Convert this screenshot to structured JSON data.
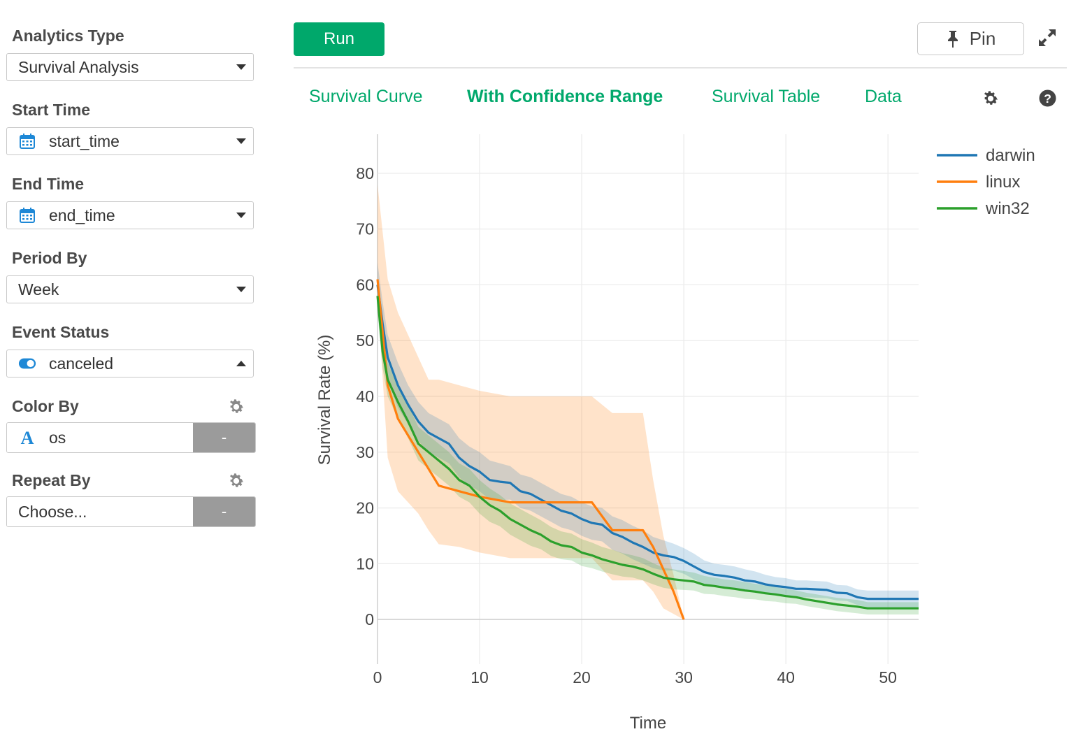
{
  "sidebar": {
    "analytics_type": {
      "label": "Analytics Type",
      "value": "Survival Analysis"
    },
    "start_time": {
      "label": "Start Time",
      "value": "start_time",
      "icon": "calendar-icon"
    },
    "end_time": {
      "label": "End Time",
      "value": "end_time",
      "icon": "calendar-icon"
    },
    "period_by": {
      "label": "Period By",
      "value": "Week"
    },
    "event_status": {
      "label": "Event Status",
      "value": "canceled",
      "icon": "toggle-icon"
    },
    "color_by": {
      "label": "Color By",
      "value": "os",
      "icon": "text-type-icon",
      "button": "-"
    },
    "repeat_by": {
      "label": "Repeat By",
      "value": "Choose...",
      "button": "-"
    }
  },
  "toolbar": {
    "run_label": "Run",
    "pin_label": "Pin"
  },
  "tabs": [
    {
      "label": "Survival Curve",
      "active": false
    },
    {
      "label": "With Confidence Range",
      "active": true
    },
    {
      "label": "Survival Table",
      "active": false
    },
    {
      "label": "Data",
      "active": false
    }
  ],
  "colors": {
    "accent": "#00a86b",
    "darwin": "#1f77b4",
    "linux": "#ff7f0e",
    "win32": "#2ca02c"
  },
  "chart_data": {
    "type": "line",
    "xlabel": "Time",
    "ylabel": "Survival Rate (%)",
    "xlim": [
      0,
      53
    ],
    "ylim": [
      -8,
      87
    ],
    "x_ticks": [
      0,
      10,
      20,
      30,
      40,
      50
    ],
    "y_ticks": [
      0,
      10,
      20,
      30,
      40,
      50,
      60,
      70,
      80
    ],
    "grid": true,
    "legend_position": "top-right",
    "series": [
      {
        "name": "darwin",
        "x": [
          0,
          0.5,
          1,
          2,
          3,
          4,
          5,
          6,
          7,
          8,
          9,
          10,
          11,
          12,
          13,
          14,
          15,
          16,
          17,
          18,
          19,
          20,
          21,
          22,
          23,
          24,
          25,
          26,
          27,
          28,
          29,
          30,
          31,
          32,
          33,
          34,
          35,
          36,
          37,
          38,
          39,
          40,
          41,
          42,
          43,
          44,
          45,
          46,
          47,
          48,
          53
        ],
        "y": [
          60,
          53,
          47,
          42,
          38.5,
          35.5,
          33.5,
          32.5,
          31.5,
          29,
          27.5,
          26.5,
          25,
          24.7,
          24.5,
          23,
          22.5,
          21.5,
          20.5,
          19.5,
          19,
          18,
          17.3,
          17,
          15.5,
          14.8,
          13.8,
          13,
          12,
          11.5,
          11.2,
          10.5,
          9.5,
          8.5,
          8,
          7.8,
          7.5,
          7,
          6.8,
          6.3,
          6,
          5.8,
          5.5,
          5.5,
          5.4,
          5.3,
          4.8,
          4.7,
          4,
          3.7,
          3.7
        ],
        "ci_upper": [
          64,
          57,
          51,
          46,
          42,
          39,
          37,
          36,
          35,
          32.5,
          31,
          30,
          28.5,
          28,
          27.5,
          26,
          25.5,
          24.5,
          23.5,
          22.5,
          22,
          21,
          20.3,
          20,
          18.5,
          17.8,
          16.8,
          16,
          14.8,
          14.2,
          13.6,
          12.8,
          11.8,
          10.6,
          10,
          9.8,
          9.5,
          9,
          8.6,
          8,
          7.6,
          7.4,
          7,
          7,
          6.9,
          6.8,
          6.2,
          6.1,
          5.4,
          5.2,
          5.2
        ],
        "ci_lower": [
          56,
          49,
          43,
          38,
          35,
          32,
          30,
          29,
          28,
          25.5,
          24,
          23,
          21.5,
          21.4,
          21.5,
          20,
          19.5,
          18.5,
          17.5,
          16.5,
          16,
          15,
          14.3,
          14,
          12.5,
          11.8,
          10.8,
          10,
          9.2,
          8.8,
          8.8,
          8.2,
          7.2,
          6.4,
          6,
          5.8,
          5.5,
          5,
          5,
          4.6,
          4.4,
          4.2,
          4,
          4,
          3.9,
          3.8,
          3.4,
          3.3,
          2.6,
          2.2,
          2.2
        ]
      },
      {
        "name": "linux",
        "x": [
          0,
          1,
          2,
          3,
          4,
          5,
          6,
          8,
          10,
          13,
          15,
          17,
          21,
          23,
          25,
          26,
          27,
          28,
          29,
          30
        ],
        "y": [
          61,
          42,
          36,
          33,
          30,
          27,
          24,
          23,
          22,
          21,
          21,
          21,
          21,
          16,
          16,
          16,
          13,
          9,
          5,
          0
        ],
        "ci_upper": [
          78,
          61,
          55,
          51,
          47,
          43,
          43,
          42,
          41,
          40,
          40,
          40,
          40,
          37,
          37,
          37,
          25,
          15,
          8,
          0
        ],
        "ci_lower": [
          58,
          29,
          23,
          21,
          19,
          16,
          13.5,
          13,
          12,
          11,
          11,
          11,
          11,
          7,
          7,
          7,
          5,
          2,
          1,
          0
        ]
      },
      {
        "name": "win32",
        "x": [
          0,
          0.5,
          1,
          2,
          3,
          4,
          5,
          6,
          7,
          8,
          9,
          10,
          11,
          12,
          13,
          14,
          15,
          16,
          17,
          18,
          19,
          20,
          21,
          22,
          23,
          24,
          25,
          26,
          27,
          28,
          29,
          30,
          31,
          32,
          33,
          34,
          35,
          36,
          37,
          38,
          39,
          40,
          41,
          42,
          43,
          44,
          45,
          46,
          47,
          48,
          53
        ],
        "y": [
          58,
          48,
          43,
          39,
          35.5,
          31.5,
          30,
          28.5,
          27,
          25,
          24,
          22,
          20.5,
          19.5,
          18,
          17,
          16,
          15.2,
          14,
          13.3,
          13,
          12,
          11.5,
          10.8,
          10.3,
          9.8,
          9.5,
          9,
          8.2,
          7.5,
          7.2,
          7,
          6.8,
          6.2,
          6,
          5.7,
          5.5,
          5.2,
          5,
          4.7,
          4.5,
          4.2,
          4,
          3.6,
          3.3,
          3,
          2.7,
          2.5,
          2.3,
          2,
          2
        ],
        "ci_upper": [
          61,
          51,
          46,
          42,
          38.5,
          34.5,
          33,
          31.5,
          30,
          28,
          27,
          25,
          23.5,
          22.3,
          20.8,
          19.8,
          18.8,
          17.8,
          16.6,
          15.8,
          15.4,
          14.4,
          13.8,
          13,
          12.5,
          11.9,
          11.5,
          11,
          10.1,
          9.3,
          9,
          8.7,
          8.4,
          7.8,
          7.5,
          7.2,
          7,
          6.7,
          6.4,
          6.1,
          5.8,
          5.5,
          5.2,
          4.8,
          4.5,
          4.2,
          3.9,
          3.7,
          3.5,
          3.1,
          3.1
        ],
        "ci_lower": [
          55,
          45,
          40,
          36,
          32.5,
          28.5,
          27,
          25.5,
          24,
          22,
          21,
          19,
          17.5,
          16.7,
          15.2,
          14.2,
          13.2,
          12.6,
          11.4,
          10.8,
          10.6,
          9.6,
          9.2,
          8.6,
          8.1,
          7.7,
          7.5,
          7,
          6.3,
          5.7,
          5.4,
          5.3,
          5.2,
          4.6,
          4.5,
          4.2,
          4,
          3.7,
          3.6,
          3.3,
          3.2,
          2.9,
          2.8,
          2.4,
          2.1,
          1.8,
          1.5,
          1.3,
          1.1,
          0.9,
          0.9
        ]
      }
    ]
  }
}
